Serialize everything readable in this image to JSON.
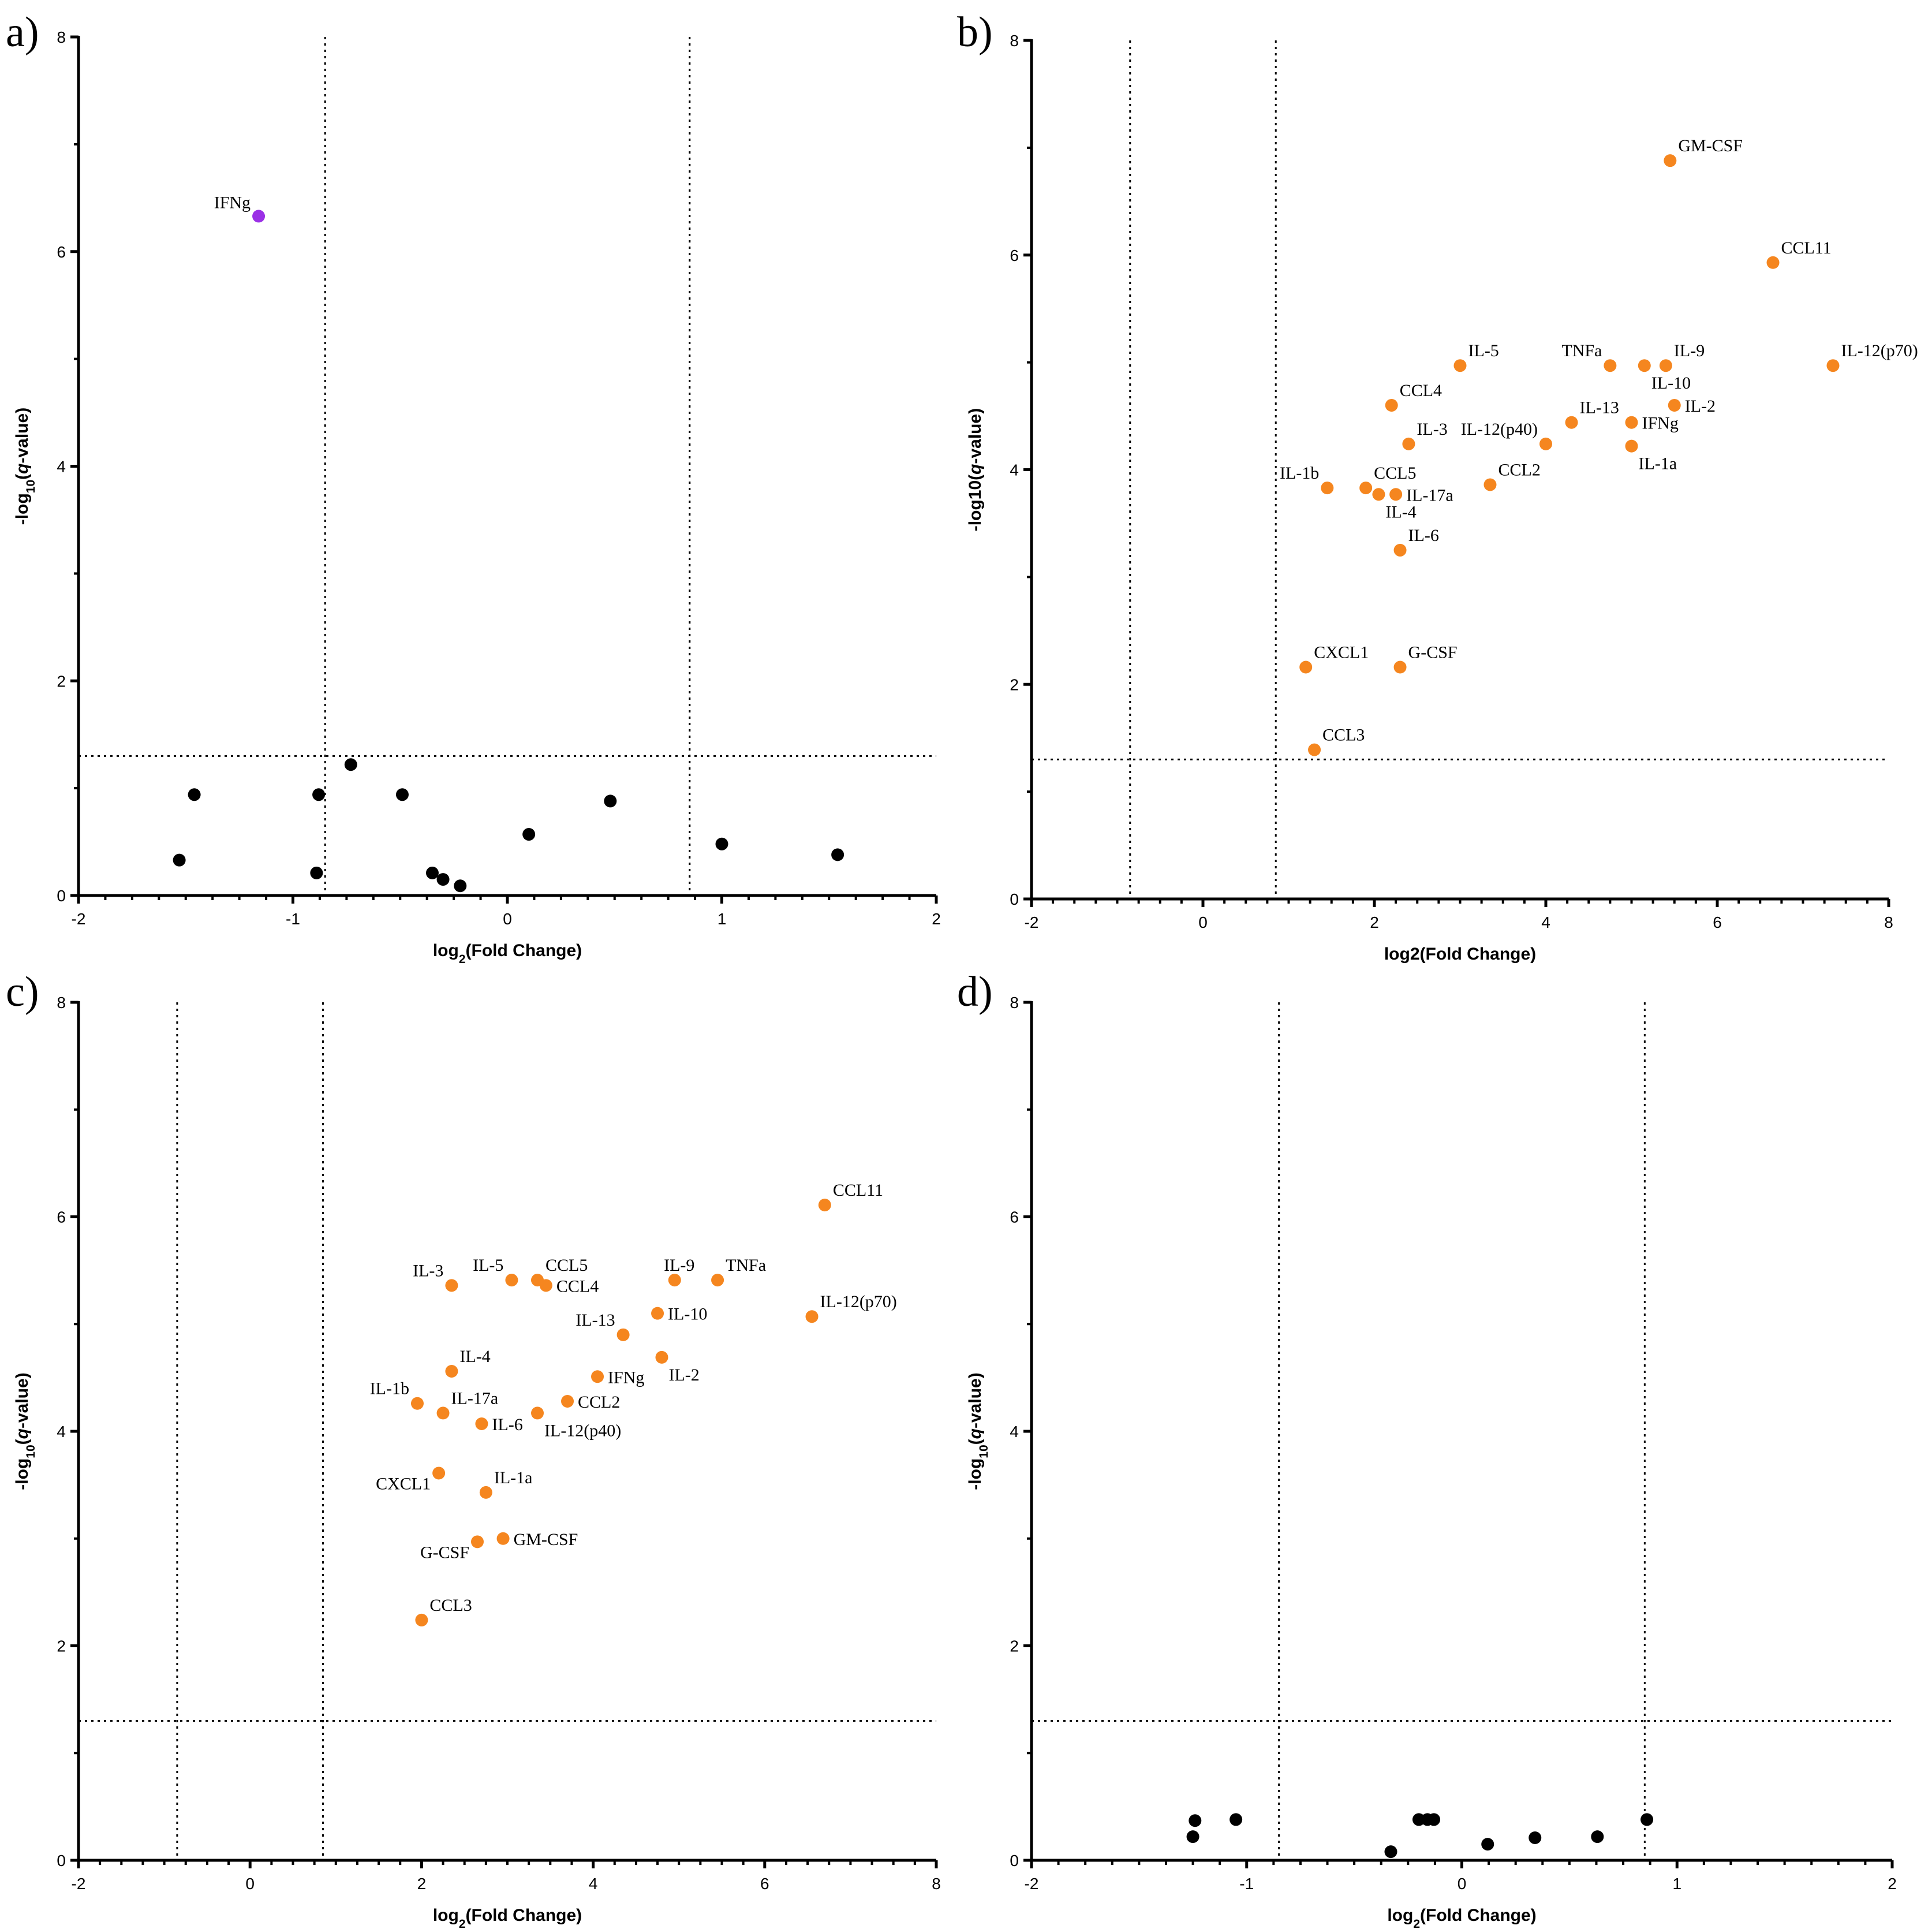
{
  "colors": {
    "black": "#000000",
    "orange": "#f5861f",
    "purple": "#9b30e6"
  },
  "chart_data": [
    {
      "type": "scatter",
      "panel": "a)",
      "xlabel": "log2(Fold Change)",
      "xlabel_base": "log",
      "xlabel_sub": "2",
      "xlabel_rest": "(Fold Change)",
      "ylabel": "-log10(q-value)",
      "ylabel_base": "-log",
      "ylabel_sub": "10",
      "ylabel_italic": "q",
      "ylabel_rest": "-value)",
      "xlim": [
        -2,
        2
      ],
      "ylim": [
        0,
        8
      ],
      "xticks": [
        -2,
        -1,
        0,
        1,
        2
      ],
      "yticks": [
        0,
        2,
        4,
        6,
        8
      ],
      "vlines": [
        -0.85,
        0.85
      ],
      "hline": 1.3,
      "points": [
        {
          "x": -1.16,
          "y": 6.33,
          "label": "IFNg",
          "color": "purple",
          "anchor": "left"
        },
        {
          "x": -1.46,
          "y": 0.94,
          "label": "",
          "color": "black"
        },
        {
          "x": -1.53,
          "y": 0.33,
          "label": "",
          "color": "black"
        },
        {
          "x": -0.88,
          "y": 0.94,
          "label": "",
          "color": "black"
        },
        {
          "x": -0.89,
          "y": 0.21,
          "label": "",
          "color": "black"
        },
        {
          "x": -0.73,
          "y": 1.22,
          "label": "",
          "color": "black"
        },
        {
          "x": -0.49,
          "y": 0.94,
          "label": "",
          "color": "black"
        },
        {
          "x": -0.35,
          "y": 0.21,
          "label": "",
          "color": "black"
        },
        {
          "x": -0.3,
          "y": 0.15,
          "label": "",
          "color": "black"
        },
        {
          "x": -0.22,
          "y": 0.09,
          "label": "",
          "color": "black"
        },
        {
          "x": 0.1,
          "y": 0.57,
          "label": "",
          "color": "black"
        },
        {
          "x": 0.48,
          "y": 0.88,
          "label": "",
          "color": "black"
        },
        {
          "x": 1.0,
          "y": 0.48,
          "label": "",
          "color": "black"
        },
        {
          "x": 1.54,
          "y": 0.38,
          "label": "",
          "color": "black"
        }
      ]
    },
    {
      "type": "scatter",
      "panel": "b)",
      "xlabel": "log2(Fold Change)",
      "ylabel": "-log10(q-value)",
      "ylabel_base": "-log10(",
      "ylabel_sub": "",
      "ylabel_italic": "q",
      "ylabel_rest": "-value)",
      "xlim": [
        -2,
        8
      ],
      "ylim": [
        0,
        8
      ],
      "xticks": [
        -2,
        0,
        2,
        4,
        6,
        8
      ],
      "yticks": [
        0,
        2,
        4,
        6,
        8
      ],
      "vlines": [
        -0.85,
        0.85
      ],
      "hline": 1.3,
      "points": [
        {
          "x": 5.45,
          "y": 6.88,
          "label": "GM-CSF",
          "color": "orange",
          "anchor": "right-up"
        },
        {
          "x": 6.65,
          "y": 5.93,
          "label": "CCL11",
          "color": "orange",
          "anchor": "right-up"
        },
        {
          "x": 7.35,
          "y": 4.97,
          "label": "IL-12(p70)",
          "color": "orange",
          "anchor": "right-up"
        },
        {
          "x": 3.0,
          "y": 4.97,
          "label": "IL-5",
          "color": "orange",
          "anchor": "right-up"
        },
        {
          "x": 4.75,
          "y": 4.97,
          "label": "TNFa",
          "color": "orange",
          "anchor": "left-up"
        },
        {
          "x": 5.4,
          "y": 4.97,
          "label": "IL-9",
          "color": "orange",
          "anchor": "right-up"
        },
        {
          "x": 5.15,
          "y": 4.97,
          "label": "IL-10",
          "color": "orange",
          "anchor": "right-down"
        },
        {
          "x": 2.2,
          "y": 4.6,
          "label": "CCL4",
          "color": "orange",
          "anchor": "right-up"
        },
        {
          "x": 5.5,
          "y": 4.6,
          "label": "IL-2",
          "color": "orange",
          "anchor": "right"
        },
        {
          "x": 4.3,
          "y": 4.44,
          "label": "IL-13",
          "color": "orange",
          "anchor": "right-up"
        },
        {
          "x": 5.0,
          "y": 4.44,
          "label": "IFNg",
          "color": "orange",
          "anchor": "right"
        },
        {
          "x": 2.4,
          "y": 4.24,
          "label": "IL-3",
          "color": "orange",
          "anchor": "right-up"
        },
        {
          "x": 4.0,
          "y": 4.24,
          "label": "IL-12(p40)",
          "color": "orange",
          "anchor": "left-up"
        },
        {
          "x": 5.0,
          "y": 4.22,
          "label": "IL-1a",
          "color": "orange",
          "anchor": "right-down"
        },
        {
          "x": 1.45,
          "y": 3.83,
          "label": "IL-1b",
          "color": "orange",
          "anchor": "left-up"
        },
        {
          "x": 1.9,
          "y": 3.83,
          "label": "CCL5",
          "color": "orange",
          "anchor": "right-up"
        },
        {
          "x": 2.05,
          "y": 3.77,
          "label": "IL-4",
          "color": "orange",
          "anchor": "right-down"
        },
        {
          "x": 2.25,
          "y": 3.77,
          "label": "IL-17a",
          "color": "orange",
          "anchor": "right"
        },
        {
          "x": 3.35,
          "y": 3.86,
          "label": "CCL2",
          "color": "orange",
          "anchor": "right-up"
        },
        {
          "x": 2.3,
          "y": 3.25,
          "label": "IL-6",
          "color": "orange",
          "anchor": "right-up"
        },
        {
          "x": 1.2,
          "y": 2.16,
          "label": "CXCL1",
          "color": "orange",
          "anchor": "right-up"
        },
        {
          "x": 2.3,
          "y": 2.16,
          "label": "G-CSF",
          "color": "orange",
          "anchor": "right-up"
        },
        {
          "x": 1.3,
          "y": 1.39,
          "label": "CCL3",
          "color": "orange",
          "anchor": "right-up"
        }
      ]
    },
    {
      "type": "scatter",
      "panel": "c)",
      "xlabel": "log2(Fold Change)",
      "xlabel_base": "log",
      "xlabel_sub": "2",
      "xlabel_rest": "(Fold Change)",
      "ylabel": "-log10(q-value)",
      "ylabel_base": "-log",
      "ylabel_sub": "10",
      "ylabel_italic": "q",
      "ylabel_rest": "-value)",
      "xlim": [
        -2,
        8
      ],
      "ylim": [
        0,
        8
      ],
      "xticks": [
        -2,
        0,
        2,
        4,
        6,
        8
      ],
      "yticks": [
        0,
        2,
        4,
        6,
        8
      ],
      "vlines": [
        -0.85,
        0.85
      ],
      "hline": 1.3,
      "points": [
        {
          "x": 6.7,
          "y": 6.11,
          "label": "CCL11",
          "color": "orange",
          "anchor": "right-up"
        },
        {
          "x": 6.55,
          "y": 5.07,
          "label": "IL-12(p70)",
          "color": "orange",
          "anchor": "right-up"
        },
        {
          "x": 2.35,
          "y": 5.36,
          "label": "IL-3",
          "color": "orange",
          "anchor": "left-up"
        },
        {
          "x": 3.05,
          "y": 5.41,
          "label": "IL-5",
          "color": "orange",
          "anchor": "left-up"
        },
        {
          "x": 3.35,
          "y": 5.41,
          "label": "CCL5",
          "color": "orange",
          "anchor": "right-up"
        },
        {
          "x": 3.45,
          "y": 5.36,
          "label": "CCL4",
          "color": "orange",
          "anchor": "right"
        },
        {
          "x": 4.95,
          "y": 5.41,
          "label": "IL-9",
          "color": "orange",
          "anchor": "center-up"
        },
        {
          "x": 5.45,
          "y": 5.41,
          "label": "TNFa",
          "color": "orange",
          "anchor": "right-up"
        },
        {
          "x": 4.75,
          "y": 5.1,
          "label": "IL-10",
          "color": "orange",
          "anchor": "right"
        },
        {
          "x": 4.35,
          "y": 4.9,
          "label": "IL-13",
          "color": "orange",
          "anchor": "left-up"
        },
        {
          "x": 4.8,
          "y": 4.69,
          "label": "IL-2",
          "color": "orange",
          "anchor": "right-down"
        },
        {
          "x": 4.05,
          "y": 4.51,
          "label": "IFNg",
          "color": "orange",
          "anchor": "right"
        },
        {
          "x": 2.35,
          "y": 4.56,
          "label": "IL-4",
          "color": "orange",
          "anchor": "right-up"
        },
        {
          "x": 1.95,
          "y": 4.26,
          "label": "IL-1b",
          "color": "orange",
          "anchor": "left-up"
        },
        {
          "x": 2.25,
          "y": 4.17,
          "label": "IL-17a",
          "color": "orange",
          "anchor": "right-up"
        },
        {
          "x": 3.7,
          "y": 4.28,
          "label": "CCL2",
          "color": "orange",
          "anchor": "right"
        },
        {
          "x": 3.35,
          "y": 4.17,
          "label": "IL-12(p40)",
          "color": "orange",
          "anchor": "right-down"
        },
        {
          "x": 2.7,
          "y": 4.07,
          "label": "IL-6",
          "color": "orange",
          "anchor": "right"
        },
        {
          "x": 2.2,
          "y": 3.61,
          "label": "CXCL1",
          "color": "orange",
          "anchor": "left-down"
        },
        {
          "x": 2.75,
          "y": 3.43,
          "label": "IL-1a",
          "color": "orange",
          "anchor": "right-up"
        },
        {
          "x": 2.95,
          "y": 3.0,
          "label": "GM-CSF",
          "color": "orange",
          "anchor": "right"
        },
        {
          "x": 2.65,
          "y": 2.97,
          "label": "G-CSF",
          "color": "orange",
          "anchor": "left-down"
        },
        {
          "x": 2.0,
          "y": 2.24,
          "label": "CCL3",
          "color": "orange",
          "anchor": "right-up"
        }
      ]
    },
    {
      "type": "scatter",
      "panel": "d)",
      "xlabel": "log2(Fold Change)",
      "xlabel_base": "log",
      "xlabel_sub": "2",
      "xlabel_rest": "(Fold Change)",
      "ylabel": "-log10(q-value)",
      "ylabel_base": "-log",
      "ylabel_sub": "10",
      "ylabel_italic": "q",
      "ylabel_rest": "-value)",
      "xlim": [
        -2,
        2
      ],
      "ylim": [
        0,
        8
      ],
      "xticks": [
        -2,
        -1,
        0,
        1,
        2
      ],
      "yticks": [
        0,
        2,
        4,
        6,
        8
      ],
      "vlines": [
        -0.85,
        0.85
      ],
      "hline": 1.3,
      "points": [
        {
          "x": -1.24,
          "y": 0.37,
          "label": "",
          "color": "black"
        },
        {
          "x": -1.25,
          "y": 0.22,
          "label": "",
          "color": "black"
        },
        {
          "x": -1.05,
          "y": 0.38,
          "label": "",
          "color": "black"
        },
        {
          "x": -0.33,
          "y": 0.08,
          "label": "",
          "color": "black"
        },
        {
          "x": -0.2,
          "y": 0.38,
          "label": "",
          "color": "black"
        },
        {
          "x": -0.16,
          "y": 0.38,
          "label": "",
          "color": "black"
        },
        {
          "x": -0.13,
          "y": 0.38,
          "label": "",
          "color": "black"
        },
        {
          "x": 0.12,
          "y": 0.15,
          "label": "",
          "color": "black"
        },
        {
          "x": 0.34,
          "y": 0.21,
          "label": "",
          "color": "black"
        },
        {
          "x": 0.63,
          "y": 0.22,
          "label": "",
          "color": "black"
        },
        {
          "x": 0.86,
          "y": 0.38,
          "label": "",
          "color": "black"
        }
      ]
    }
  ]
}
